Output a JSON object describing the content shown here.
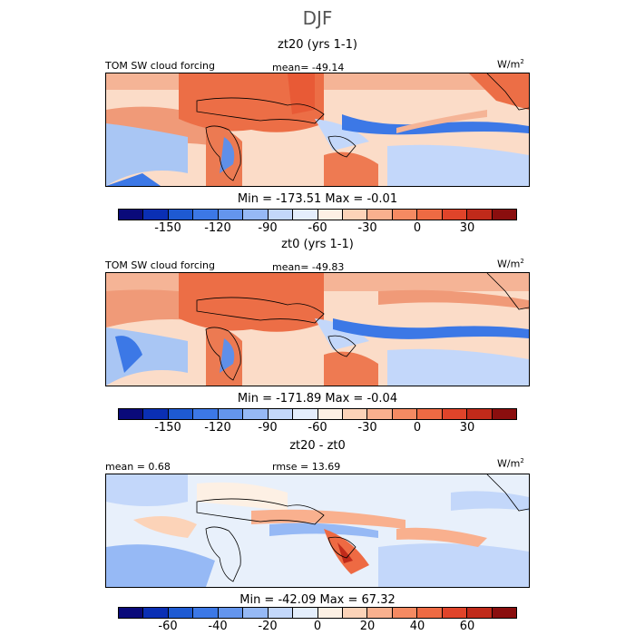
{
  "figure_title": "DJF",
  "colors": {
    "scale_abs": [
      "#0a0a7a",
      "#0a2fb4",
      "#1e5ad2",
      "#3c78e6",
      "#6495ed",
      "#96b9f5",
      "#c3d7fa",
      "#e4eefc",
      "#fdf0e4",
      "#fcd3b8",
      "#f9b08e",
      "#f58a62",
      "#ee6a43",
      "#e0442a",
      "#c02a1a",
      "#8a0e0e"
    ],
    "ocean_warm": "#fbdcc8",
    "land_warm": "#ee7a52",
    "cool_a": "#a9c6f4",
    "cool_b": "#5f8fe8",
    "diff_base": "#e8f0fb"
  },
  "panels": [
    {
      "id": "zt20",
      "title": "zt20 (yrs 1-1)",
      "label_left": "TOM SW cloud forcing",
      "label_mid": "mean=  -49.14",
      "units": "W/m",
      "units_sup": "2",
      "stats": "Min = -173.51  Max =  -0.01",
      "ticks": [
        "-150",
        "-120",
        "-90",
        "-60",
        "-30",
        "0",
        "30"
      ]
    },
    {
      "id": "zt0",
      "title": "zt0 (yrs 1-1)",
      "label_left": "TOM SW cloud forcing",
      "label_mid": "mean=  -49.83",
      "units": "W/m",
      "units_sup": "2",
      "stats": "Min = -171.89  Max =  -0.04",
      "ticks": [
        "-150",
        "-120",
        "-90",
        "-60",
        "-30",
        "0",
        "30"
      ]
    },
    {
      "id": "diff",
      "title": "zt20 - zt0",
      "label_left": "mean =   0.68",
      "label_mid": "rmse =  13.69",
      "units": "W/m",
      "units_sup": "2",
      "stats": "Min = -42.09  Max =  67.32",
      "ticks": [
        "-60",
        "-40",
        "-20",
        "0",
        "20",
        "40",
        "60"
      ]
    }
  ]
}
